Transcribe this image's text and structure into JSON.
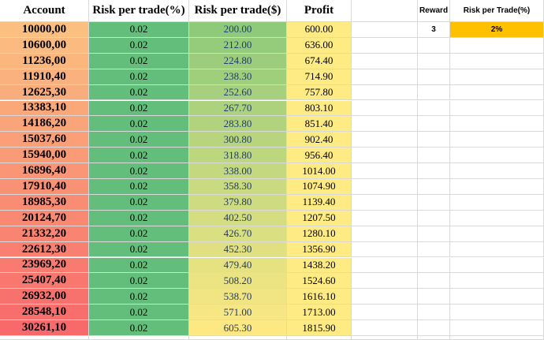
{
  "sheet": {
    "headers": {
      "account": "Account",
      "risk_pct": "Risk per trade(%)",
      "risk_usd": "Risk per trade($)",
      "profit": "Profit"
    },
    "rows": [
      {
        "account": "10000,00",
        "risk_pct": "0.02",
        "risk_usd": "200.00",
        "profit": "600.00"
      },
      {
        "account": "10600,00",
        "risk_pct": "0.02",
        "risk_usd": "212.00",
        "profit": "636.00"
      },
      {
        "account": "11236,00",
        "risk_pct": "0.02",
        "risk_usd": "224.80",
        "profit": "674.40"
      },
      {
        "account": "11910,40",
        "risk_pct": "0.02",
        "risk_usd": "238.30",
        "profit": "714.90"
      },
      {
        "account": "12625,30",
        "risk_pct": "0.02",
        "risk_usd": "252.60",
        "profit": "757.80"
      },
      {
        "account": "13383,10",
        "risk_pct": "0.02",
        "risk_usd": "267.70",
        "profit": "803.10"
      },
      {
        "account": "14186,20",
        "risk_pct": "0.02",
        "risk_usd": "283.80",
        "profit": "851.40"
      },
      {
        "account": "15037,60",
        "risk_pct": "0.02",
        "risk_usd": "300.80",
        "profit": "902.40"
      },
      {
        "account": "15940,00",
        "risk_pct": "0.02",
        "risk_usd": "318.80",
        "profit": "956.40"
      },
      {
        "account": "16896,40",
        "risk_pct": "0.02",
        "risk_usd": "338.00",
        "profit": "1014.00"
      },
      {
        "account": "17910,40",
        "risk_pct": "0.02",
        "risk_usd": "358.30",
        "profit": "1074.90"
      },
      {
        "account": "18985,30",
        "risk_pct": "0.02",
        "risk_usd": "379.80",
        "profit": "1139.40"
      },
      {
        "account": "20124,70",
        "risk_pct": "0.02",
        "risk_usd": "402.50",
        "profit": "1207.50"
      },
      {
        "account": "21332,20",
        "risk_pct": "0.02",
        "risk_usd": "426.70",
        "profit": "1280.10"
      },
      {
        "account": "22612,30",
        "risk_pct": "0.02",
        "risk_usd": "452.30",
        "profit": "1356.90"
      },
      {
        "account": "23969,20",
        "risk_pct": "0.02",
        "risk_usd": "479.40",
        "profit": "1438.20"
      },
      {
        "account": "25407,40",
        "risk_pct": "0.02",
        "risk_usd": "508.20",
        "profit": "1524.60"
      },
      {
        "account": "26932,00",
        "risk_pct": "0.02",
        "risk_usd": "538.70",
        "profit": "1616.10"
      },
      {
        "account": "28548,10",
        "risk_pct": "0.02",
        "risk_usd": "571.00",
        "profit": "1713.00"
      },
      {
        "account": "30261,10",
        "risk_pct": "0.02",
        "risk_usd": "605.30",
        "profit": "1815.90"
      }
    ],
    "side_table": {
      "reward_label": "Reward",
      "risk_label": "Risk per Trade(%)",
      "reward_value": "3",
      "risk_value": "2%"
    }
  },
  "colors": {
    "account_top": "#fbbf80",
    "account_bottom": "#f8696b",
    "risk_pct": "#63be7b",
    "risk_usd_top": "#8fca7b",
    "risk_usd_bottom": "#fde884",
    "profit": "#ffeb84",
    "risk_highlight": "#ffc000",
    "gridline": "#d9d9d9"
  }
}
